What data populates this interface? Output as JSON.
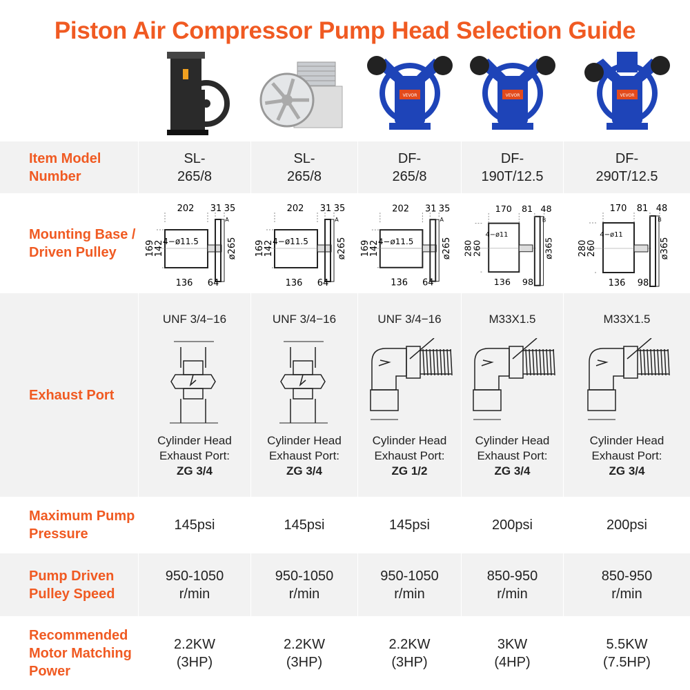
{
  "title": "Piston Air Compressor Pump Head Selection Guide",
  "colors": {
    "accent": "#f05a22",
    "row_gray": "#f2f2f2",
    "pump_blue": "#1e44b8",
    "pump_black": "#2a2a2a",
    "pump_silver": "#c9ccd0"
  },
  "row_labels": {
    "model": "Item Model Number",
    "mount": "Mounting Base / Driven Pulley",
    "exhaust": "Exhaust Port",
    "pressure": "Maximum Pump Pressure",
    "speed": "Pump Driven Pulley Speed",
    "power": "Recommended Motor Matching Power"
  },
  "products": [
    {
      "image": "black-pump",
      "brand": "",
      "model": [
        "SL-",
        "265/8"
      ],
      "dims": {
        "w": "202",
        "a": "31",
        "b": "35",
        "h1": "169",
        "h2": "142",
        "holes": "4−ø11.5",
        "dia": "ø265",
        "l1": "136",
        "l2": "64",
        "groove": "A"
      },
      "exhaust_thread": "UNF 3/4−16",
      "exhaust_type": "straight",
      "exhaust_line1": "Cylinder Head",
      "exhaust_line2": "Exhaust Port:",
      "exhaust_size": "ZG 3/4",
      "pressure": "145psi",
      "speed": [
        "950-1050",
        "r/min"
      ],
      "power": [
        "2.2KW",
        "(3HP)"
      ]
    },
    {
      "image": "silver-pump",
      "brand": "",
      "model": [
        "SL-",
        "265/8"
      ],
      "dims": {
        "w": "202",
        "a": "31",
        "b": "35",
        "h1": "169",
        "h2": "142",
        "holes": "4−ø11.5",
        "dia": "ø265",
        "l1": "136",
        "l2": "64",
        "groove": "A"
      },
      "exhaust_thread": "UNF 3/4−16",
      "exhaust_type": "straight",
      "exhaust_line1": "Cylinder Head",
      "exhaust_line2": "Exhaust Port:",
      "exhaust_size": "ZG 3/4",
      "pressure": "145psi",
      "speed": [
        "950-1050",
        "r/min"
      ],
      "power": [
        "2.2KW",
        "(3HP)"
      ]
    },
    {
      "image": "blue-pump-2cyl",
      "brand": "VEVOR",
      "model": [
        "DF-",
        "265/8"
      ],
      "dims": {
        "w": "202",
        "a": "31",
        "b": "35",
        "h1": "169",
        "h2": "142",
        "holes": "4−ø11.5",
        "dia": "ø265",
        "l1": "136",
        "l2": "64",
        "groove": "A"
      },
      "exhaust_thread": "UNF 3/4−16",
      "exhaust_type": "elbow",
      "exhaust_line1": "Cylinder Head",
      "exhaust_line2": "Exhaust Port:",
      "exhaust_size": "ZG 1/2",
      "pressure": "145psi",
      "speed": [
        "950-1050",
        "r/min"
      ],
      "power": [
        "2.2KW",
        "(3HP)"
      ]
    },
    {
      "image": "blue-pump-2cyl-large",
      "brand": "VEVOR",
      "model": [
        "DF-",
        "190T/12.5"
      ],
      "dims": {
        "w": "170",
        "a": "81",
        "b": "48",
        "h1": "280",
        "h2": "260",
        "holes": "4−ø11",
        "dia": "ø365",
        "l1": "136",
        "l2": "98",
        "groove": "B"
      },
      "exhaust_thread": "M33X1.5",
      "exhaust_type": "elbow",
      "exhaust_line1": "Cylinder Head",
      "exhaust_line2": "Exhaust Port:",
      "exhaust_size": "ZG 3/4",
      "pressure": "200psi",
      "speed": [
        "850-950",
        "r/min"
      ],
      "power": [
        "3KW",
        "(4HP)"
      ]
    },
    {
      "image": "blue-pump-3cyl",
      "brand": "VEVOR",
      "model": [
        "DF-",
        "290T/12.5"
      ],
      "dims": {
        "w": "170",
        "a": "81",
        "b": "48",
        "h1": "280",
        "h2": "260",
        "holes": "4−ø11",
        "dia": "ø365",
        "l1": "136",
        "l2": "98",
        "groove": "B"
      },
      "exhaust_thread": "M33X1.5",
      "exhaust_type": "elbow",
      "exhaust_line1": "Cylinder Head",
      "exhaust_line2": "Exhaust Port:",
      "exhaust_size": "ZG 3/4",
      "pressure": "200psi",
      "speed": [
        "850-950",
        "r/min"
      ],
      "power": [
        "5.5KW",
        "(7.5HP)"
      ]
    }
  ]
}
